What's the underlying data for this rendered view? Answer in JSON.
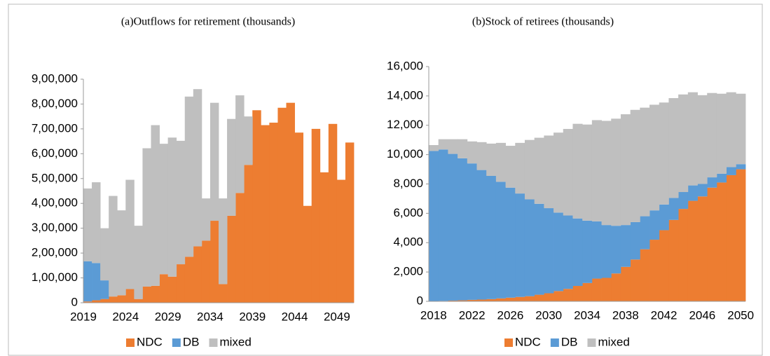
{
  "chart_data": [
    {
      "type": "bar",
      "title": "(a)Outflows for retirement (thousands)",
      "categories": [
        "2019",
        null,
        null,
        null,
        null,
        "2024",
        null,
        null,
        null,
        null,
        "2029",
        null,
        null,
        null,
        null,
        "2034",
        null,
        null,
        null,
        null,
        "2039",
        null,
        null,
        null,
        null,
        "2044",
        null,
        null,
        null,
        null,
        "2049",
        null
      ],
      "series": [
        {
          "name": "NDC",
          "color": "#ED7D31",
          "values": [
            5000,
            10000,
            15000,
            25000,
            30000,
            55000,
            15000,
            65000,
            68000,
            115000,
            105000,
            155000,
            185000,
            227000,
            250000,
            330000,
            75000,
            350000,
            442000,
            555000,
            775000,
            715000,
            725000,
            785000,
            805000,
            685000,
            390000,
            700000,
            525000,
            720000,
            495000,
            645000
          ]
        },
        {
          "name": "DB",
          "color": "#5B9BD5",
          "values": [
            162000,
            150000,
            75000,
            0,
            0,
            0,
            0,
            0,
            0,
            0,
            0,
            0,
            0,
            0,
            0,
            0,
            0,
            0,
            0,
            0,
            0,
            0,
            0,
            0,
            0,
            0,
            0,
            0,
            0,
            0,
            0,
            0
          ]
        },
        {
          "name": "mixed",
          "color": "#BFBFBF",
          "values": [
            293000,
            325000,
            210000,
            405000,
            342000,
            440000,
            295000,
            557000,
            647000,
            525000,
            560000,
            497000,
            645000,
            633000,
            170000,
            475000,
            345000,
            390000,
            393000,
            195000,
            0,
            0,
            0,
            0,
            0,
            0,
            0,
            0,
            0,
            0,
            0,
            0
          ]
        }
      ],
      "ylim": [
        0,
        900000
      ],
      "yticks": [
        0,
        {
          "value": 100000,
          "label": "1,00,000"
        },
        {
          "value": 200000,
          "label": "2,00,000"
        },
        {
          "value": 300000,
          "label": "3,00,000"
        },
        {
          "value": 400000,
          "label": "4,00,000"
        },
        {
          "value": 500000,
          "label": "5,00,000"
        },
        {
          "value": 600000,
          "label": "6,00,000"
        },
        {
          "value": 700000,
          "label": "7,00,000"
        },
        {
          "value": 800000,
          "label": "8,00,000"
        },
        {
          "value": 900000,
          "label": "9,00,000"
        }
      ],
      "legend": "bottom"
    },
    {
      "type": "bar",
      "title": "(b)Stock of retirees (thousands)",
      "categories": [
        "2018",
        null,
        null,
        null,
        "2022",
        null,
        null,
        null,
        "2026",
        null,
        null,
        null,
        "2030",
        null,
        null,
        null,
        "2034",
        null,
        null,
        null,
        "2038",
        null,
        null,
        null,
        "2042",
        null,
        null,
        null,
        "2046",
        null,
        null,
        null,
        "2050"
      ],
      "series": [
        {
          "name": "NDC",
          "color": "#ED7D31",
          "values": [
            20,
            30,
            50,
            70,
            100,
            120,
            150,
            200,
            250,
            300,
            350,
            450,
            550,
            700,
            850,
            1050,
            1250,
            1550,
            1600,
            1900,
            2350,
            2850,
            3550,
            4200,
            4850,
            5550,
            6300,
            6850,
            7150,
            7750,
            8100,
            8600,
            9000
          ]
        },
        {
          "name": "DB",
          "color": "#5B9BD5",
          "values": [
            10230,
            10320,
            10000,
            9680,
            9300,
            8830,
            8400,
            7950,
            7500,
            7050,
            6600,
            6200,
            5800,
            5350,
            5000,
            4600,
            4250,
            3900,
            3600,
            3250,
            2850,
            2550,
            2250,
            2000,
            1750,
            1500,
            1150,
            1050,
            850,
            700,
            600,
            550,
            350
          ]
        },
        {
          "name": "mixed",
          "color": "#BFBFBF",
          "values": [
            400,
            700,
            1000,
            1300,
            1500,
            1900,
            2200,
            2650,
            2850,
            3450,
            4050,
            4500,
            4950,
            5450,
            5900,
            6450,
            6550,
            6900,
            7100,
            7300,
            7550,
            7650,
            7400,
            7200,
            6950,
            6800,
            6650,
            6350,
            6050,
            5750,
            5450,
            5100,
            4800
          ]
        }
      ],
      "ylim": [
        0,
        16000
      ],
      "yticks": [
        0,
        {
          "value": 2000,
          "label": "2,000"
        },
        {
          "value": 4000,
          "label": "4,000"
        },
        {
          "value": 6000,
          "label": "6,000"
        },
        {
          "value": 8000,
          "label": "8,000"
        },
        {
          "value": 10000,
          "label": "10,000"
        },
        {
          "value": 12000,
          "label": "12,000"
        },
        {
          "value": 14000,
          "label": "14,000"
        },
        {
          "value": 16000,
          "label": "16,000"
        }
      ],
      "legend": "bottom"
    }
  ]
}
